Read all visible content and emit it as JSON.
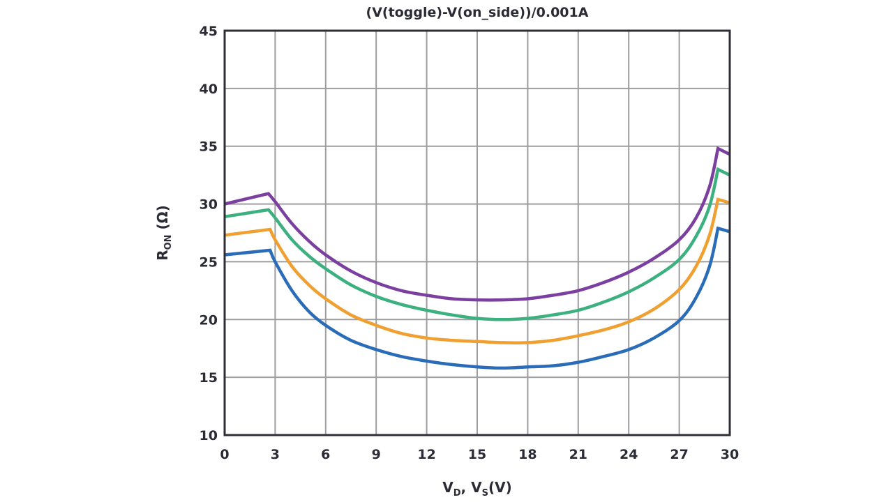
{
  "chart_data": {
    "type": "line",
    "title": "(V(toggle)-V(on_side))/0.001A",
    "xlabel": {
      "main": "V",
      "sub1": "D",
      "sep": ", V",
      "sub2": "S",
      "unit": "(V)"
    },
    "ylabel": {
      "main": "R",
      "sub": "ON",
      "unit": " (Ω)"
    },
    "xlim": [
      0,
      30
    ],
    "ylim": [
      10,
      45
    ],
    "x_ticks": [
      0,
      3,
      6,
      9,
      12,
      15,
      18,
      21,
      24,
      27,
      30
    ],
    "x_tick_labels": [
      "0",
      "3",
      "6",
      "9",
      "12",
      "15",
      "18",
      "21",
      "24",
      "27",
      "30"
    ],
    "y_ticks": [
      10,
      15,
      20,
      25,
      30,
      35,
      40,
      45
    ],
    "y_tick_labels": [
      "10",
      "15",
      "20",
      "25",
      "30",
      "35",
      "40",
      "45"
    ],
    "grid": true,
    "legend": "none",
    "series": [
      {
        "name": "purple",
        "color": "#7b3fa0",
        "x": [
          0,
          2.6,
          3,
          4,
          5,
          6,
          7.5,
          9,
          10.5,
          12,
          13.5,
          15,
          16.5,
          18,
          19.5,
          21,
          22.5,
          24,
          25.5,
          27,
          28,
          28.8,
          29.3,
          30
        ],
        "y": [
          30.0,
          30.9,
          30.2,
          28.3,
          26.8,
          25.6,
          24.2,
          23.2,
          22.5,
          22.1,
          21.8,
          21.7,
          21.7,
          21.8,
          22.1,
          22.5,
          23.2,
          24.1,
          25.3,
          26.9,
          28.8,
          31.5,
          34.8,
          34.3
        ]
      },
      {
        "name": "green",
        "color": "#3db07f",
        "x": [
          0,
          2.6,
          3,
          4,
          5,
          6,
          7.5,
          9,
          10.5,
          12,
          13.5,
          15,
          16.5,
          18,
          19.5,
          21,
          22.5,
          24,
          25.5,
          27,
          28,
          28.8,
          29.3,
          30
        ],
        "y": [
          28.9,
          29.5,
          28.8,
          26.9,
          25.5,
          24.4,
          23.0,
          22.0,
          21.3,
          20.8,
          20.4,
          20.1,
          20.0,
          20.1,
          20.4,
          20.8,
          21.5,
          22.4,
          23.6,
          25.2,
          27.2,
          29.8,
          33.0,
          32.5
        ]
      },
      {
        "name": "orange",
        "color": "#f0a030",
        "x": [
          0,
          2.7,
          3,
          4,
          5,
          6,
          7.5,
          9,
          10.5,
          12,
          13.5,
          15,
          16.5,
          18,
          19.5,
          21,
          22.5,
          24,
          25.5,
          27,
          28,
          28.8,
          29.3,
          30
        ],
        "y": [
          27.3,
          27.8,
          26.9,
          24.6,
          23.0,
          21.8,
          20.4,
          19.5,
          18.8,
          18.4,
          18.2,
          18.1,
          18.0,
          18.0,
          18.2,
          18.6,
          19.1,
          19.8,
          20.9,
          22.6,
          24.6,
          27.3,
          30.4,
          30.1
        ]
      },
      {
        "name": "blue",
        "color": "#2b6cb8",
        "x": [
          0,
          2.7,
          3,
          4,
          5,
          6,
          7.5,
          9,
          10.5,
          12,
          13.5,
          15,
          16.5,
          18,
          19.5,
          21,
          22.5,
          24,
          25.5,
          27,
          28,
          28.8,
          29.3,
          30
        ],
        "y": [
          25.6,
          26.0,
          25.0,
          22.5,
          20.7,
          19.5,
          18.2,
          17.4,
          16.8,
          16.4,
          16.1,
          15.9,
          15.8,
          15.9,
          16.0,
          16.3,
          16.8,
          17.4,
          18.4,
          19.9,
          21.9,
          24.6,
          27.9,
          27.6
        ]
      }
    ]
  }
}
